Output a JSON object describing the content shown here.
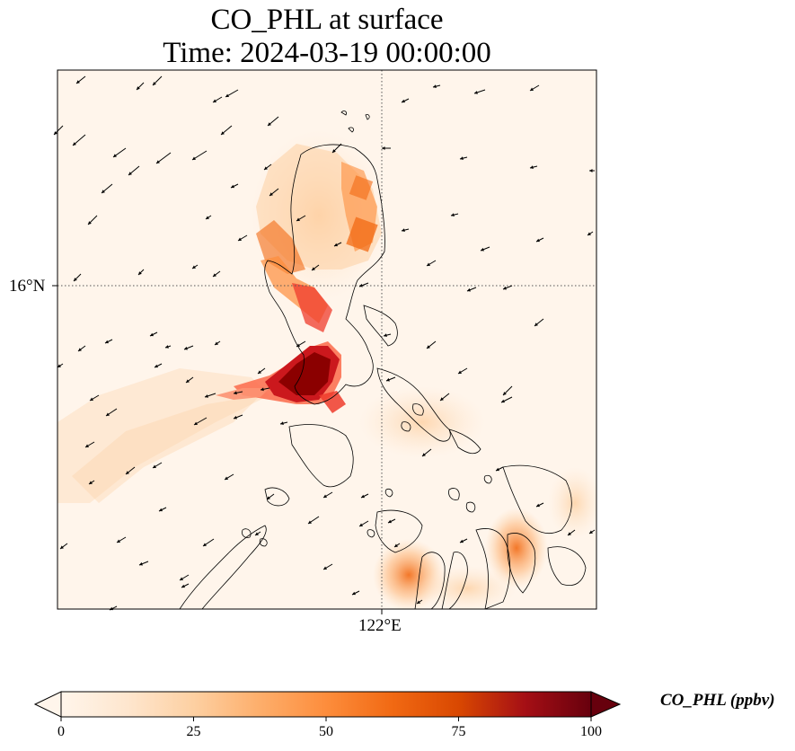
{
  "title": {
    "line1": "CO_PHL at surface",
    "line2": "Time: 2024-03-19 00:00:00"
  },
  "axes": {
    "lat_tick": "16°N",
    "lon_tick": "122°E",
    "gridlines": "dotted"
  },
  "colorbar": {
    "units_label": "CO_PHL (ppbv)",
    "ticks": [
      "0",
      "25",
      "50",
      "75",
      "100"
    ],
    "min": 0,
    "max": 100,
    "extend": "both",
    "colormap": [
      "#fff5eb",
      "#fee6ce",
      "#fdd0a2",
      "#fdae6b",
      "#fd8d3c",
      "#f16913",
      "#d94801",
      "#a50f15",
      "#67000d"
    ]
  },
  "colors": {
    "background_field": "#fff5eb",
    "coastline": "#000000",
    "wind_vectors": "#000000"
  },
  "wind_vectors": "northeasterly, pointing toward the southwest"
}
